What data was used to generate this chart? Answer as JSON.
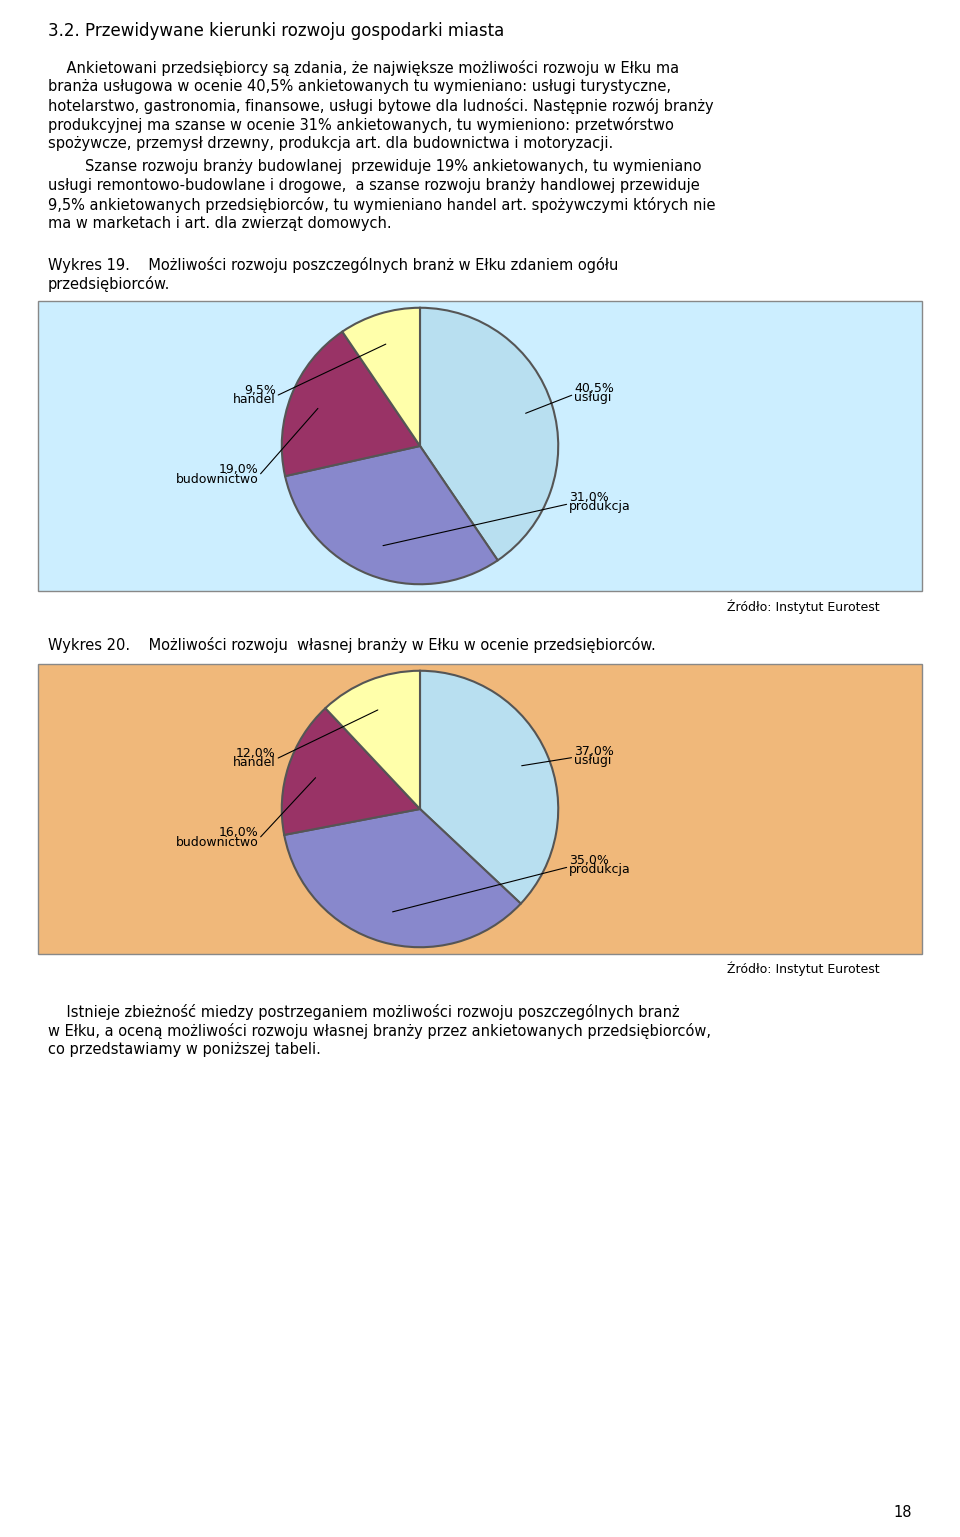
{
  "title_section": "3.2. Przewidywane kierunki rozwoju gospodarki miasta",
  "chart1_title_line1": "Wykres 19.",
  "chart1_title_line2": "Możliwości rozwoju poszczególnych branż w Ełku zdaniem ogółu",
  "chart1_title_line3": "przedsiębiorców.",
  "chart1_values": [
    40.5,
    31.0,
    19.0,
    9.5
  ],
  "chart1_colors": [
    "#b8dff0",
    "#8888cc",
    "#993366",
    "#ffffaa"
  ],
  "chart1_bg": "#cceeff",
  "chart1_source": "Źródło: Instytut Eurotest",
  "chart1_label_names": [
    "usługi",
    "40,5%",
    "produkcja",
    "31,0%",
    "budownictwo",
    "19,0%",
    "handel",
    "9,5%"
  ],
  "chart2_title_line1": "Wykres 20.",
  "chart2_title_line2": "Możliwości rozwoju  własnej branży w Ełku w ocenie przedsiębiorców.",
  "chart2_values": [
    37.0,
    35.0,
    16.0,
    12.0
  ],
  "chart2_colors": [
    "#b8dff0",
    "#8888cc",
    "#993366",
    "#ffffaa"
  ],
  "chart2_bg": "#f0b87a",
  "chart2_source": "Źródło: Instytut Eurotest",
  "chart2_label_names": [
    "usługi",
    "37,0%",
    "produkcja",
    "35,0%",
    "budownictwo",
    "16,0%",
    "handel",
    "12,0%"
  ],
  "page_number": "18",
  "bg_color": "#ffffff",
  "text_color": "#000000"
}
